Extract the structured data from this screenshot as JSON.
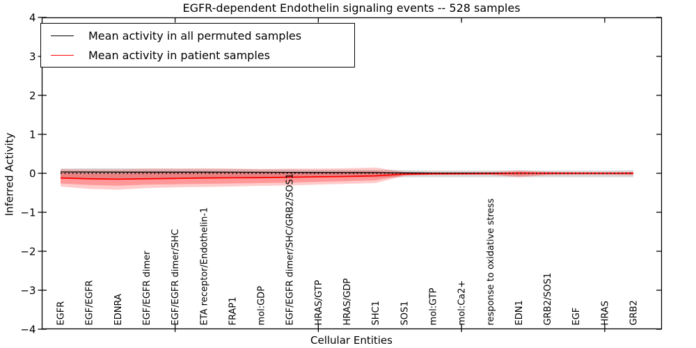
{
  "title": "EGFR-dependent Endothelin signaling events -- 528 samples",
  "axes": {
    "xlabel": "Cellular Entities",
    "ylabel": "Inferred Activity",
    "y_tick_labels": [
      "4",
      "3",
      "2",
      "1",
      "0",
      "−1",
      "−2",
      "−3",
      "−4"
    ]
  },
  "legend": {
    "items": [
      {
        "label": "Mean activity in all permuted samples",
        "color": "#000000"
      },
      {
        "label": "Mean activity in patient samples",
        "color": "#ff0000"
      }
    ]
  },
  "colors": {
    "axis": "#000000",
    "patient": "#ff0000",
    "permuted": "#000000",
    "patient_band": "#ff0000",
    "permuted_band": "#999999",
    "background": "#ffffff"
  },
  "chart_data": {
    "type": "line",
    "title": "EGFR-dependent Endothelin signaling events -- 528 samples",
    "xlabel": "Cellular Entities",
    "ylabel": "Inferred Activity",
    "ylim": [
      -4,
      4
    ],
    "y_ticks": [
      4,
      3,
      2,
      1,
      0,
      -1,
      -2,
      -3,
      -4
    ],
    "grid": false,
    "legend_position": "upper left",
    "x_major_tick_indices": [
      4,
      9,
      14,
      19
    ],
    "categories": [
      "EGFR",
      "EGF/EGFR",
      "EDNRA",
      "EGF/EGFR dimer",
      "EGF/EGFR dimer/SHC",
      "ETA receptor/Endothelin-1",
      "FRAP1",
      "mol:GDP",
      "EGF/EGFR dimer/SHC/GRB2/SOS1",
      "HRAS/GTP",
      "HRAS/GDP",
      "SHC1",
      "SOS1",
      "mol:GTP",
      "mol:Ca2+",
      "response to oxidative stress",
      "EDN1",
      "GRB2/SOS1",
      "EGF",
      "HRAS",
      "GRB2"
    ],
    "series": [
      {
        "name": "Mean activity in all permuted samples",
        "color": "#000000",
        "style": "solid",
        "width": 1.3,
        "values": [
          0.035,
          0.032,
          0.03,
          0.03,
          0.03,
          0.03,
          0.028,
          0.026,
          0.025,
          0.022,
          0.02,
          0.018,
          0.01,
          0.007,
          0.006,
          0.005,
          0.005,
          0.004,
          0.004,
          0.003,
          0.003
        ]
      },
      {
        "name": "Mean activity in patient samples",
        "color": "#ff0000",
        "style": "solid",
        "width": 1.8,
        "values": [
          -0.12,
          -0.14,
          -0.15,
          -0.14,
          -0.13,
          -0.12,
          -0.115,
          -0.11,
          -0.1,
          -0.09,
          -0.08,
          -0.065,
          -0.02,
          -0.012,
          -0.01,
          -0.008,
          0.005,
          0.003,
          0.002,
          0.002,
          0.003
        ]
      },
      {
        "name": "zero reference",
        "color": "#000000",
        "style": "dotted",
        "width": 1.6,
        "values": [
          0,
          0,
          0,
          0,
          0,
          0,
          0,
          0,
          0,
          0,
          0,
          0,
          0,
          0,
          0,
          0,
          0,
          0,
          0,
          0,
          0
        ]
      }
    ],
    "bands": [
      {
        "name": "permuted samples std band",
        "color": "#999999",
        "opacity": 0.35,
        "hi": [
          0.12,
          0.13,
          0.13,
          0.12,
          0.12,
          0.11,
          0.11,
          0.1,
          0.1,
          0.09,
          0.09,
          0.09,
          0.08,
          0.07,
          0.07,
          0.07,
          0.08,
          0.07,
          0.07,
          0.07,
          0.08
        ],
        "lo": [
          -0.12,
          -0.13,
          -0.13,
          -0.12,
          -0.12,
          -0.11,
          -0.11,
          -0.11,
          -0.1,
          -0.1,
          -0.1,
          -0.1,
          -0.1,
          -0.1,
          -0.1,
          -0.1,
          -0.1,
          -0.1,
          -0.1,
          -0.1,
          -0.1
        ]
      },
      {
        "name": "patient samples std band outer",
        "color": "#ff0000",
        "opacity": 0.2,
        "hi": [
          0.11,
          0.1,
          0.1,
          0.12,
          0.12,
          0.13,
          0.12,
          0.11,
          0.12,
          0.12,
          0.13,
          0.15,
          0.035,
          0.025,
          0.025,
          0.03,
          0.07,
          0.035,
          0.03,
          0.03,
          0.035
        ],
        "lo": [
          -0.34,
          -0.4,
          -0.42,
          -0.38,
          -0.36,
          -0.35,
          -0.34,
          -0.32,
          -0.31,
          -0.29,
          -0.27,
          -0.25,
          -0.07,
          -0.04,
          -0.04,
          -0.04,
          -0.1,
          -0.05,
          -0.04,
          -0.04,
          -0.05
        ]
      },
      {
        "name": "patient samples std band inner",
        "color": "#ff0000",
        "opacity": 0.25,
        "hi": [
          0.02,
          0.0,
          0.0,
          0.02,
          0.02,
          0.03,
          0.02,
          0.02,
          0.03,
          0.03,
          0.04,
          0.05,
          0.01,
          0.005,
          0.005,
          0.01,
          0.03,
          0.01,
          0.01,
          0.01,
          0.015
        ],
        "lo": [
          -0.26,
          -0.3,
          -0.32,
          -0.29,
          -0.28,
          -0.27,
          -0.26,
          -0.25,
          -0.24,
          -0.22,
          -0.2,
          -0.18,
          -0.05,
          -0.025,
          -0.025,
          -0.03,
          -0.06,
          -0.03,
          -0.025,
          -0.025,
          -0.03
        ]
      }
    ]
  }
}
